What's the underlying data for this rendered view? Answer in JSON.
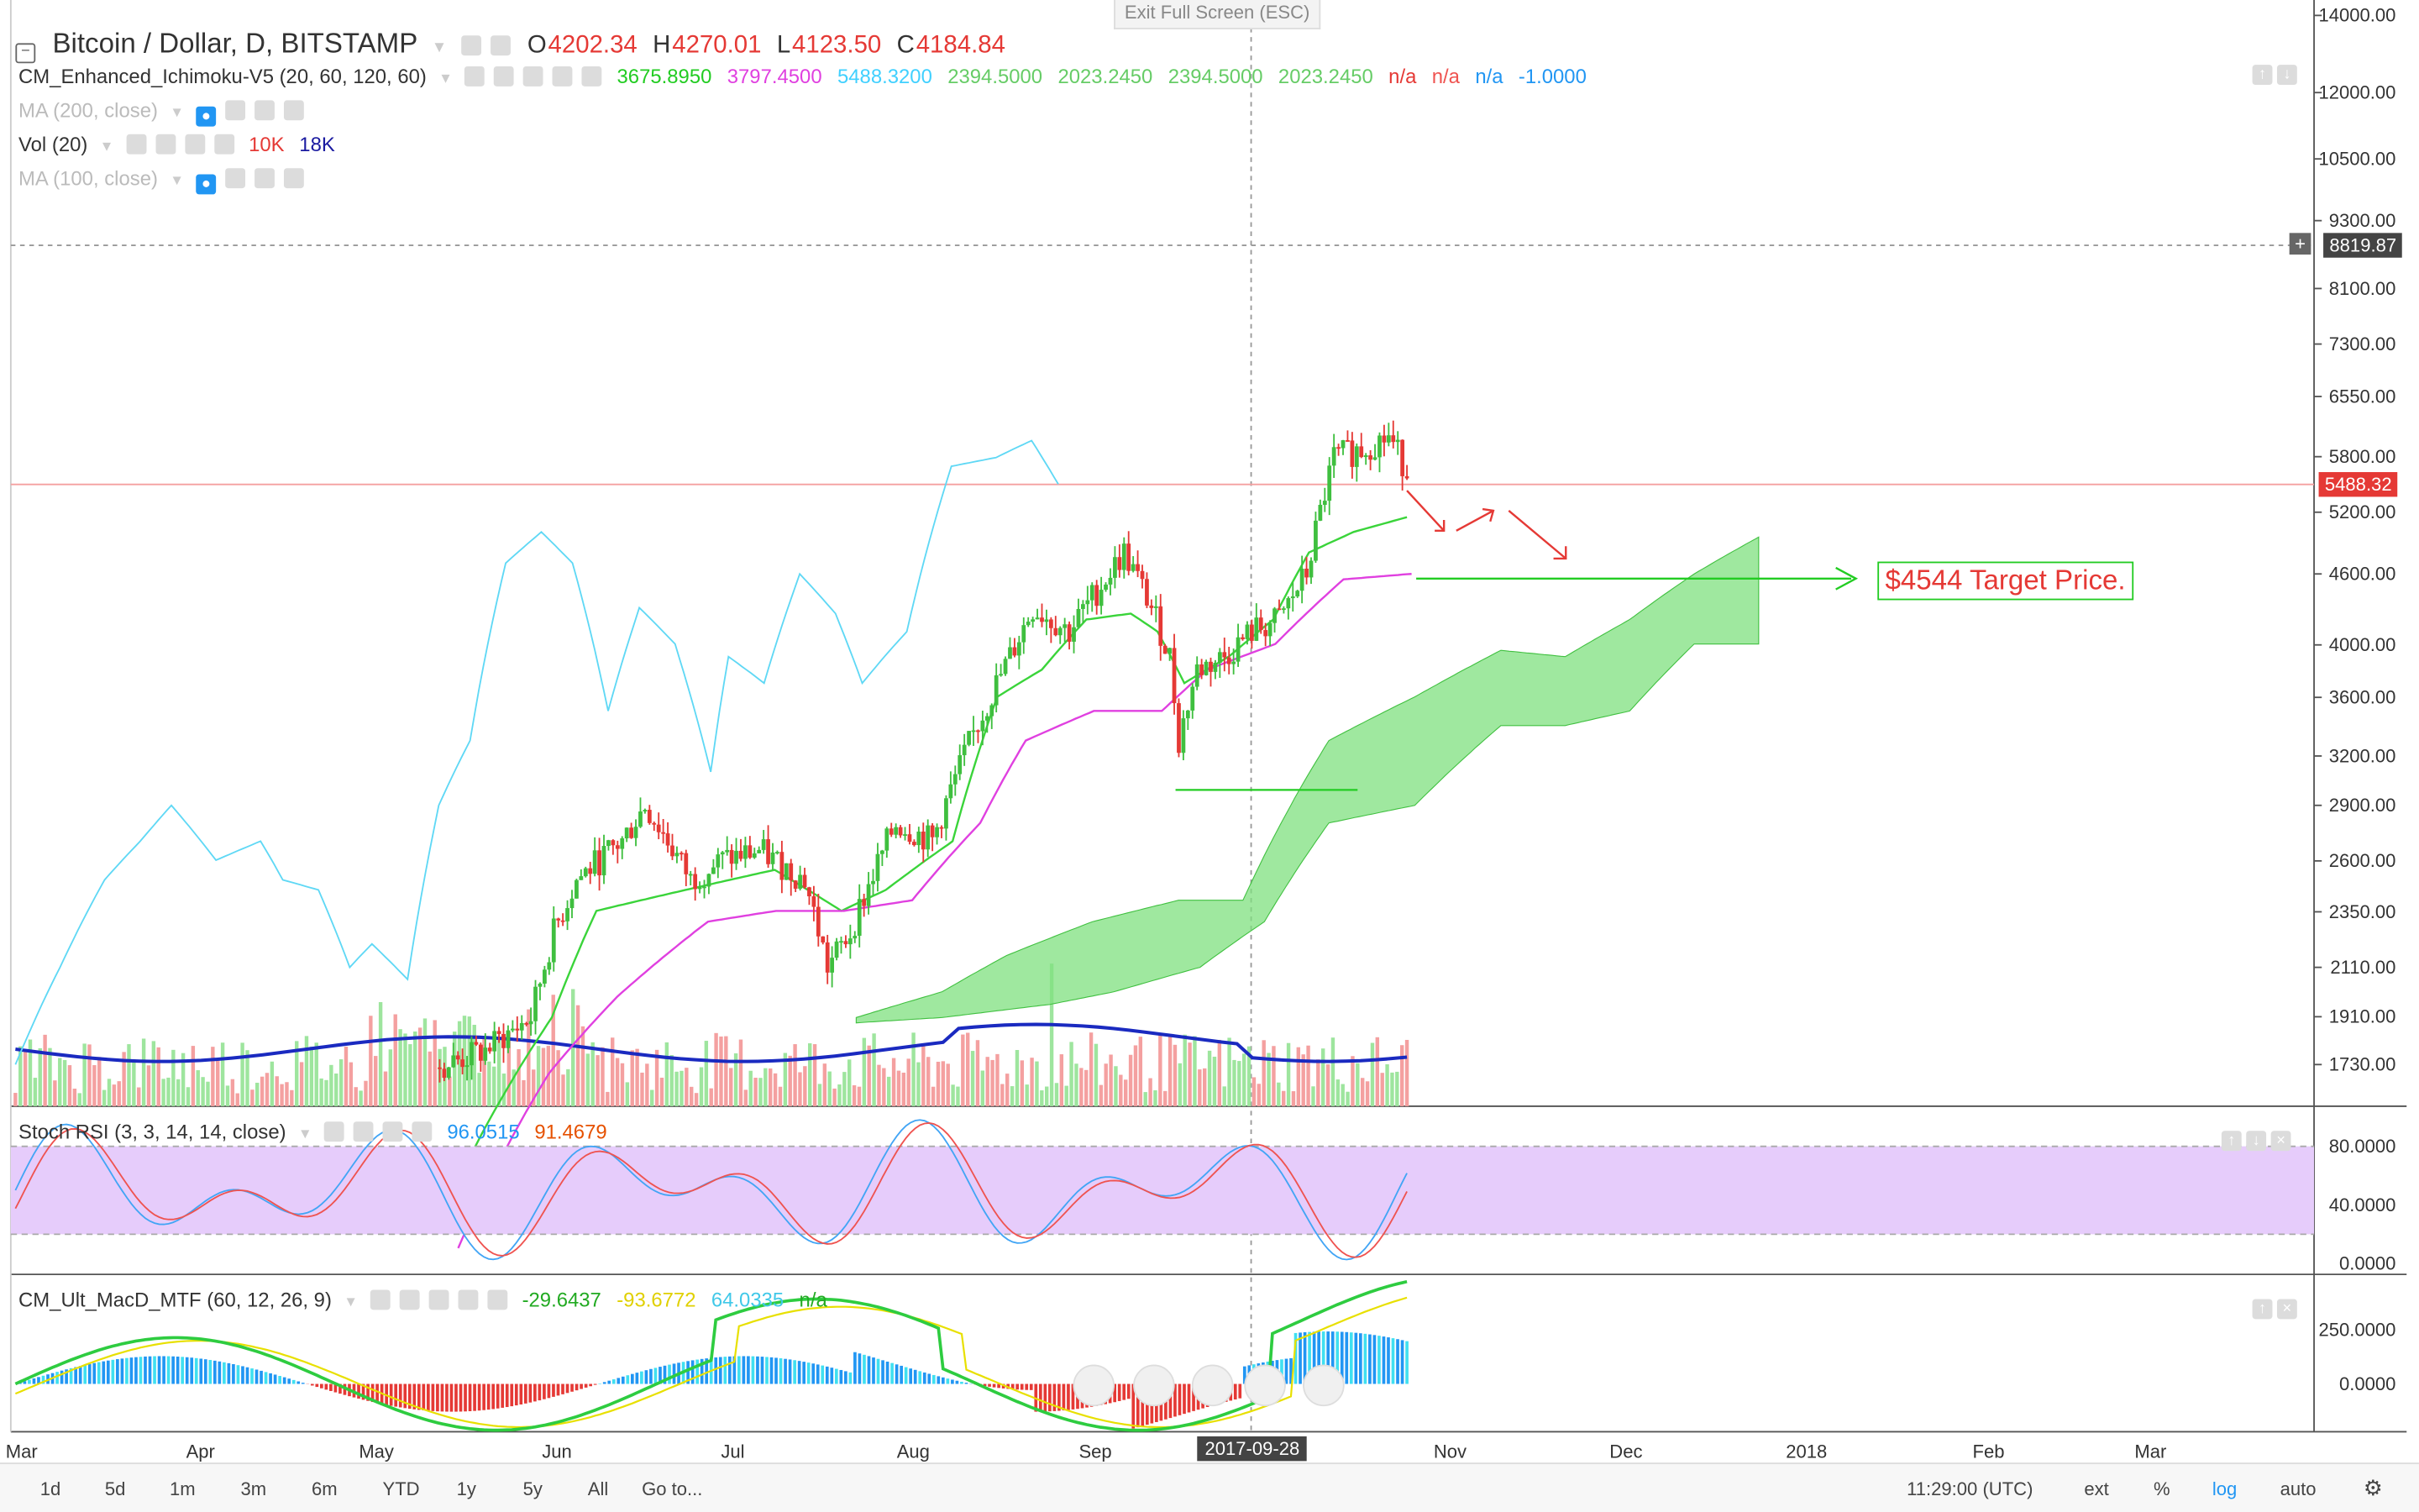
{
  "header": {
    "symbol": "Bitcoin / Dollar, D, BITSTAMP",
    "ohlc": [
      {
        "k": "O",
        "v": "4202.34"
      },
      {
        "k": "H",
        "v": "4270.01"
      },
      {
        "k": "L",
        "v": "4123.50"
      },
      {
        "k": "C",
        "v": "4184.84"
      }
    ]
  },
  "exit_fullscreen": "Exit Full Screen (ESC)",
  "indicators": {
    "ichimoku": {
      "name": "CM_Enhanced_Ichimoku-V5 (20, 60, 120, 60)",
      "values": [
        {
          "v": "3675.8950",
          "color": "#22cc22"
        },
        {
          "v": "3797.4500",
          "color": "#e040e0"
        },
        {
          "v": "5488.3200",
          "color": "#40d0ff"
        },
        {
          "v": "2394.5000",
          "color": "#66cc66"
        },
        {
          "v": "2023.2450",
          "color": "#66cc66"
        },
        {
          "v": "2394.5000",
          "color": "#66cc66"
        },
        {
          "v": "2023.2450",
          "color": "#66cc66"
        },
        {
          "v": "n/a",
          "color": "#e53935"
        },
        {
          "v": "n/a",
          "color": "#ef5350"
        },
        {
          "v": "n/a",
          "color": "#2196f3"
        },
        {
          "v": "-1.0000",
          "color": "#2196f3"
        }
      ]
    },
    "ma200": {
      "name": "MA (200, close)"
    },
    "vol": {
      "name": "Vol (20)",
      "v1": "10K",
      "v2": "18K",
      "c1": "#e53935",
      "c2": "#1a1aa0"
    },
    "ma100": {
      "name": "MA (100, close)"
    },
    "stoch": {
      "name": "Stoch RSI (3, 3, 14, 14, close)",
      "v1": "96.0515",
      "v2": "91.4679",
      "c1": "#2196f3",
      "c2": "#e65100"
    },
    "macd": {
      "name": "CM_Ult_MacD_MTF (60, 12, 26, 9)",
      "values": [
        {
          "v": "-29.6437",
          "color": "#22aa22"
        },
        {
          "v": "-93.6772",
          "color": "#e0d000"
        },
        {
          "v": "64.0335",
          "color": "#40c8e8"
        },
        {
          "v": "n/a",
          "color": "#22aa22"
        }
      ]
    }
  },
  "price_axis": [
    "14000.00",
    "12000.00",
    "10500.00",
    "9300.00",
    "8100.00",
    "7300.00",
    "6550.00",
    "5800.00",
    "5200.00",
    "4600.00",
    "4000.00",
    "3600.00",
    "3200.00",
    "2900.00",
    "2600.00",
    "2350.00",
    "2110.00",
    "1910.00",
    "1730.00"
  ],
  "price_tags": {
    "crosshair": "8819.87",
    "last": "5488.32"
  },
  "stoch_axis": [
    "80.0000",
    "40.0000",
    "0.0000"
  ],
  "macd_axis": [
    "250.0000",
    "0.0000"
  ],
  "time_axis": [
    "Mar",
    "Apr",
    "May",
    "Jun",
    "Jul",
    "Aug",
    "Sep",
    "Nov",
    "Dec",
    "2018",
    "Feb",
    "Mar"
  ],
  "crosshair_date": "2017-09-28",
  "annotation": "$4544 Target Price.",
  "bottom_bar": {
    "ranges": [
      "1d",
      "5d",
      "1m",
      "3m",
      "6m",
      "YTD",
      "1y",
      "5y",
      "All"
    ],
    "goto": "Go to...",
    "time": "11:29:00 (UTC)",
    "ext": "ext",
    "pct": "%",
    "log": "log",
    "auto": "auto"
  },
  "colors": {
    "up": "#3fbf3f",
    "down": "#e53935",
    "cloud": "#7fe07f",
    "tenkan": "#3ad43a",
    "kijun": "#e040e0",
    "chikou": "#5fd8f5",
    "volma": "#1a2ac0",
    "stoch_bg": "#e6ccfb",
    "target": "#22cc22",
    "annot": "#e53935"
  }
}
